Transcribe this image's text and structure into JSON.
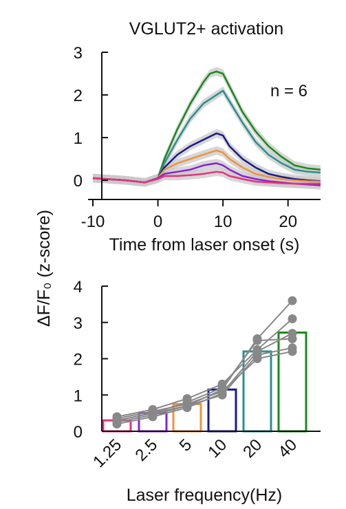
{
  "chart_data": [
    {
      "type": "line",
      "title": "VGLUT2+ activation",
      "annotation": "n = 6",
      "xlabel": "Time from laser onset (s)",
      "ylabel": "",
      "xlim": [
        -10,
        25
      ],
      "ylim": [
        -0.45,
        3
      ],
      "xticks": [
        "-10",
        "0",
        "10",
        "20"
      ],
      "yticks": [
        "0",
        "1",
        "2",
        "3"
      ],
      "shaded_error": true,
      "series": [
        {
          "color": "#1a8a1a",
          "points": [
            [
              -10,
              0.05
            ],
            [
              -5,
              0
            ],
            [
              -2,
              -0.05
            ],
            [
              0,
              0.05
            ],
            [
              1,
              0.5
            ],
            [
              3,
              1.2
            ],
            [
              5,
              1.8
            ],
            [
              7,
              2.3
            ],
            [
              8,
              2.5
            ],
            [
              9,
              2.55
            ],
            [
              10,
              2.5
            ],
            [
              11,
              2.2
            ],
            [
              13,
              1.6
            ],
            [
              15,
              1.15
            ],
            [
              17,
              0.8
            ],
            [
              19,
              0.55
            ],
            [
              21,
              0.35
            ],
            [
              23,
              0.28
            ],
            [
              25,
              0.25
            ]
          ]
        },
        {
          "color": "#2a8f8f",
          "points": [
            [
              -10,
              0.05
            ],
            [
              -5,
              0
            ],
            [
              -2,
              -0.05
            ],
            [
              0,
              0.05
            ],
            [
              1,
              0.4
            ],
            [
              3,
              0.95
            ],
            [
              5,
              1.45
            ],
            [
              7,
              1.8
            ],
            [
              9,
              2.0
            ],
            [
              10,
              2.1
            ],
            [
              11,
              1.85
            ],
            [
              13,
              1.35
            ],
            [
              15,
              0.9
            ],
            [
              17,
              0.6
            ],
            [
              19,
              0.4
            ],
            [
              21,
              0.25
            ],
            [
              23,
              0.2
            ],
            [
              25,
              0.18
            ]
          ]
        },
        {
          "color": "#1a1a8a",
          "points": [
            [
              -10,
              0.05
            ],
            [
              -5,
              0
            ],
            [
              -2,
              -0.05
            ],
            [
              0,
              0.05
            ],
            [
              1,
              0.3
            ],
            [
              3,
              0.6
            ],
            [
              5,
              0.8
            ],
            [
              7,
              0.95
            ],
            [
              9,
              1.1
            ],
            [
              10,
              1.05
            ],
            [
              11,
              0.8
            ],
            [
              13,
              0.5
            ],
            [
              15,
              0.3
            ],
            [
              17,
              0.15
            ],
            [
              19,
              0.08
            ],
            [
              21,
              0.03
            ],
            [
              23,
              0.0
            ],
            [
              25,
              -0.02
            ]
          ]
        },
        {
          "color": "#f0923c",
          "points": [
            [
              -10,
              0.05
            ],
            [
              -5,
              0
            ],
            [
              -2,
              -0.05
            ],
            [
              0,
              0.05
            ],
            [
              1,
              0.25
            ],
            [
              3,
              0.4
            ],
            [
              5,
              0.5
            ],
            [
              7,
              0.6
            ],
            [
              9,
              0.7
            ],
            [
              10,
              0.65
            ],
            [
              11,
              0.5
            ],
            [
              13,
              0.3
            ],
            [
              15,
              0.15
            ],
            [
              17,
              0.08
            ],
            [
              19,
              0.03
            ],
            [
              21,
              0.0
            ],
            [
              23,
              -0.02
            ],
            [
              25,
              -0.03
            ]
          ]
        },
        {
          "color": "#8a22d0",
          "points": [
            [
              -10,
              0.05
            ],
            [
              -5,
              0
            ],
            [
              -2,
              -0.05
            ],
            [
              0,
              0.05
            ],
            [
              1,
              0.15
            ],
            [
              3,
              0.2
            ],
            [
              5,
              0.25
            ],
            [
              7,
              0.35
            ],
            [
              9,
              0.4
            ],
            [
              10,
              0.35
            ],
            [
              11,
              0.25
            ],
            [
              13,
              0.1
            ],
            [
              15,
              0.03
            ],
            [
              17,
              -0.02
            ],
            [
              19,
              -0.05
            ],
            [
              21,
              -0.08
            ],
            [
              23,
              -0.1
            ],
            [
              25,
              -0.12
            ]
          ]
        },
        {
          "color": "#e8307e",
          "points": [
            [
              -10,
              0.05
            ],
            [
              -5,
              0
            ],
            [
              -2,
              -0.05
            ],
            [
              0,
              0.03
            ],
            [
              1,
              0.1
            ],
            [
              3,
              0.1
            ],
            [
              5,
              0.12
            ],
            [
              7,
              0.15
            ],
            [
              9,
              0.2
            ],
            [
              10,
              0.18
            ],
            [
              11,
              0.1
            ],
            [
              13,
              0.03
            ],
            [
              15,
              -0.03
            ],
            [
              17,
              -0.05
            ],
            [
              19,
              -0.07
            ],
            [
              21,
              -0.08
            ],
            [
              23,
              -0.08
            ],
            [
              25,
              -0.08
            ]
          ]
        }
      ]
    },
    {
      "type": "bar",
      "ylabel": "ΔF/F₀ (z-score)",
      "xlabel": "Laser frequency(Hz)",
      "categories": [
        "1.25",
        "2.5",
        "5",
        "10",
        "20",
        "40"
      ],
      "values": [
        0.3,
        0.5,
        0.75,
        1.15,
        2.2,
        2.72
      ],
      "colors": [
        "#e8307e",
        "#8a22d0",
        "#f0923c",
        "#1a1a8a",
        "#2a8f8f",
        "#1a8a1a"
      ],
      "ylim": [
        0,
        4
      ],
      "yticks": [
        "0",
        "1",
        "2",
        "3",
        "4"
      ],
      "individuals": [
        [
          0.35,
          0.55,
          0.75,
          1.1,
          2.0,
          2.2
        ],
        [
          0.25,
          0.45,
          0.7,
          1.0,
          2.1,
          2.3
        ],
        [
          0.3,
          0.5,
          0.8,
          1.2,
          2.5,
          2.55
        ],
        [
          0.4,
          0.6,
          0.9,
          1.3,
          2.25,
          3.1
        ],
        [
          0.3,
          0.5,
          0.7,
          1.15,
          2.55,
          3.6
        ],
        [
          0.2,
          0.4,
          0.65,
          1.05,
          2.2,
          2.7
        ]
      ],
      "individual_color": "#888888"
    }
  ]
}
